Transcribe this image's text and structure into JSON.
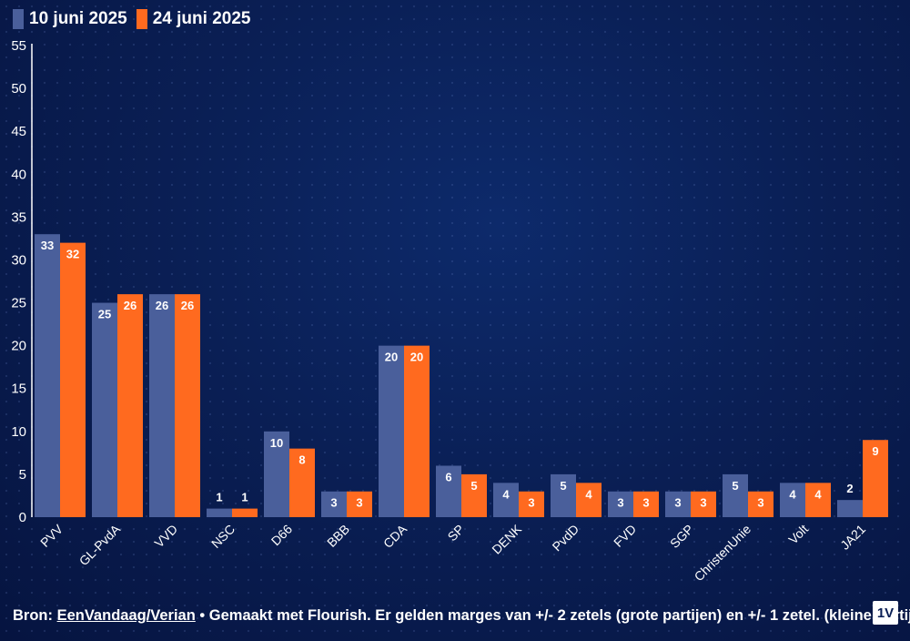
{
  "legend": {
    "series_a": "10 juni 2025",
    "series_b": "24 juni 2025"
  },
  "colors": {
    "series_a": "#4a5f9b",
    "series_b": "#ff6a1f"
  },
  "footer": {
    "prefix": "Bron: ",
    "link": "EenVandaag/Verian",
    "rest": " • Gemaakt met Flourish. Er gelden marges van +/- 2 zetels (grote partijen) en +/- 1 zetel. (kleine partijen)"
  },
  "logo_text": "1V",
  "chart_data": {
    "type": "bar",
    "categories": [
      "PVV",
      "GL-PvdA",
      "VVD",
      "NSC",
      "D66",
      "BBB",
      "CDA",
      "SP",
      "DENK",
      "PvdD",
      "FVD",
      "SGP",
      "ChristenUnie",
      "Volt",
      "JA21"
    ],
    "series": [
      {
        "name": "10 juni 2025",
        "values": [
          33,
          25,
          26,
          1,
          10,
          3,
          20,
          6,
          4,
          5,
          3,
          3,
          5,
          4,
          2
        ]
      },
      {
        "name": "24 juni 2025",
        "values": [
          32,
          26,
          26,
          1,
          8,
          3,
          20,
          5,
          3,
          4,
          3,
          3,
          3,
          4,
          9
        ]
      }
    ],
    "ylim": [
      0,
      55
    ],
    "yticks": [
      0,
      5,
      10,
      15,
      20,
      25,
      30,
      35,
      40,
      45,
      50,
      55
    ],
    "title": "",
    "xlabel": "",
    "ylabel": "",
    "legend_position": "top-left"
  }
}
